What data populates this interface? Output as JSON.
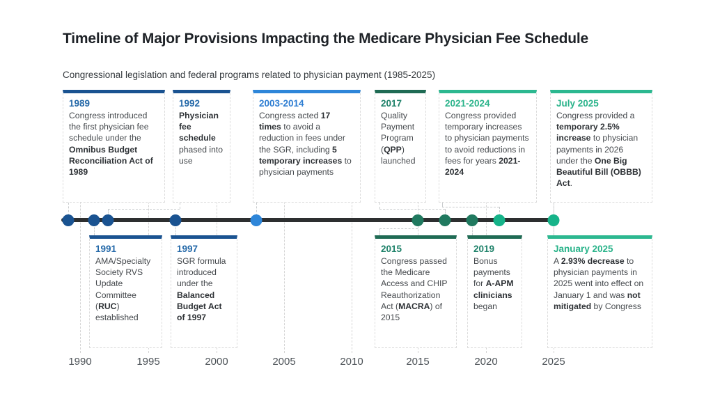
{
  "header": {
    "title": "Timeline of Major Provisions Impacting the Medicare Physician Fee Schedule",
    "subtitle": "Congressional legislation and federal programs related to physician payment (1985-2025)"
  },
  "colors": {
    "navy_bar": "#1a5391",
    "navy_text": "#2368a8",
    "blue_bar": "#2e86d9",
    "blue_text": "#2d7dd2",
    "green_bar": "#1f6b54",
    "green_text": "#1c8068",
    "teal_bar": "#2cb890",
    "teal_text": "#29b38a",
    "timeline_line": "#2d2f30",
    "body_text": "#45494d"
  },
  "chart_data": {
    "type": "timeline",
    "title": "Timeline of Major Provisions Impacting the Medicare Physician Fee Schedule",
    "subtitle": "Congressional legislation and federal programs related to physician payment (1985-2025)",
    "x_axis": {
      "ticks": [
        "1990",
        "1995",
        "2000",
        "2005",
        "2010",
        "2015",
        "2020",
        "2025"
      ],
      "range": [
        1985,
        2026
      ],
      "gridlines": "dashed"
    },
    "dot_years": [
      1989,
      1991,
      1992,
      1997,
      2003,
      2015,
      2017,
      2019,
      2021,
      2025
    ],
    "events": [
      {
        "label": "1989",
        "side": "top",
        "theme": "navy",
        "segments": [
          {
            "t": "Congress introduced the first physician fee schedule under the "
          },
          {
            "t": "Omnibus Budget Reconciliation Act of 1989",
            "b": true
          }
        ]
      },
      {
        "label": "1992",
        "side": "top",
        "theme": "navy",
        "segments": [
          {
            "t": "Physician fee schedule",
            "b": true
          },
          {
            "t": " phased into use"
          }
        ]
      },
      {
        "label": "2003-2014",
        "side": "top",
        "theme": "blue",
        "segments": [
          {
            "t": "Congress acted "
          },
          {
            "t": "17 times",
            "b": true
          },
          {
            "t": " to avoid a reduction in fees under the SGR, including "
          },
          {
            "t": "5 temporary increases",
            "b": true
          },
          {
            "t": " to physician payments"
          }
        ]
      },
      {
        "label": "2017",
        "side": "top",
        "theme": "green",
        "segments": [
          {
            "t": "Quality Payment Program ("
          },
          {
            "t": "QPP",
            "b": true
          },
          {
            "t": ") launched"
          }
        ]
      },
      {
        "label": "2021-2024",
        "side": "top",
        "theme": "teal",
        "segments": [
          {
            "t": "Congress provided temporary increases to physician payments to avoid reductions in fees for years "
          },
          {
            "t": "2021-2024",
            "b": true
          }
        ]
      },
      {
        "label": "July 2025",
        "side": "top",
        "theme": "teal",
        "segments": [
          {
            "t": "Congress provided a "
          },
          {
            "t": "temporary 2.5% increase",
            "b": true
          },
          {
            "t": " to physician payments in 2026 under the "
          },
          {
            "t": "One Big Beautiful Bill (OBBB) Act",
            "b": true
          },
          {
            "t": "."
          }
        ]
      },
      {
        "label": "1991",
        "side": "bottom",
        "theme": "navy",
        "segments": [
          {
            "t": "AMA/Specialty Society RVS Update Committee ("
          },
          {
            "t": "RUC",
            "b": true
          },
          {
            "t": ") established"
          }
        ]
      },
      {
        "label": "1997",
        "side": "bottom",
        "theme": "navy",
        "segments": [
          {
            "t": "SGR formula introduced under the "
          },
          {
            "t": "Balanced Budget Act of 1997",
            "b": true
          }
        ]
      },
      {
        "label": "2015",
        "side": "bottom",
        "theme": "green",
        "segments": [
          {
            "t": "Congress passed the Medicare Access and CHIP Reauthorization Act ("
          },
          {
            "t": "MACRA",
            "b": true
          },
          {
            "t": ") of 2015"
          }
        ]
      },
      {
        "label": "2019",
        "side": "bottom",
        "theme": "green",
        "segments": [
          {
            "t": "Bonus payments for "
          },
          {
            "t": "A-APM clinicians",
            "b": true
          },
          {
            "t": " began"
          }
        ]
      },
      {
        "label": "January 2025",
        "side": "bottom",
        "theme": "teal",
        "segments": [
          {
            "t": "A "
          },
          {
            "t": "2.93% decrease",
            "b": true
          },
          {
            "t": " to physician payments in 2025 went into effect on January 1 and was "
          },
          {
            "t": "not mitigated",
            "b": true
          },
          {
            "t": " by Congress"
          }
        ]
      }
    ]
  }
}
